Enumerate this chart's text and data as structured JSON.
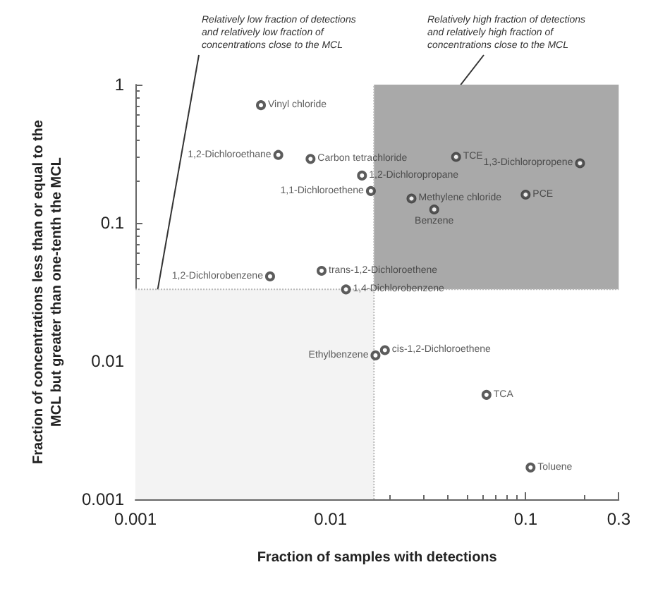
{
  "chart_data": {
    "type": "scatter",
    "xlabel": "Fraction of samples with detections",
    "ylabel": "Fraction of concentrations less than or equal to the\nMCL but greater than one-tenth the MCL",
    "log": "xy",
    "xlim": [
      0.001,
      0.3
    ],
    "xticks": [
      0.001,
      0.01,
      0.1,
      0.3
    ],
    "ylim": [
      0.001,
      1
    ],
    "yticks": [
      0.001,
      0.01,
      0.1,
      1
    ],
    "grid": false,
    "marker": "circle",
    "series": [
      {
        "color": "#333333",
        "x": [
          0.0044,
          0.0054,
          0.0079,
          0.0145,
          0.0161,
          0.044,
          0.19,
          0.026,
          0.1,
          0.034,
          0.009,
          0.0049,
          0.012,
          0.019,
          0.017,
          0.063,
          0.106
        ],
        "values": [
          0.71,
          0.31,
          0.29,
          0.22,
          0.17,
          0.3,
          0.27,
          0.15,
          0.16,
          0.125,
          0.045,
          0.041,
          0.033,
          0.012,
          0.011,
          0.0057,
          0.0017
        ]
      }
    ],
    "annotations": [
      {
        "text": "Vinyl chloride",
        "x": 0.0044,
        "y": 0.71
      },
      {
        "text": "1,2-Dichloroethane",
        "x": 0.0054,
        "y": 0.31
      },
      {
        "text": "Carbon tetrachloride",
        "x": 0.0079,
        "y": 0.29
      },
      {
        "text": "1,2-Dichloropropane",
        "x": 0.0145,
        "y": 0.22
      },
      {
        "text": "1,1-Dichloroethene",
        "x": 0.0161,
        "y": 0.17
      },
      {
        "text": "TCE",
        "x": 0.044,
        "y": 0.3
      },
      {
        "text": "1,3-Dichloropropene",
        "x": 0.19,
        "y": 0.27
      },
      {
        "text": "Methylene chloride",
        "x": 0.026,
        "y": 0.15
      },
      {
        "text": "PCE",
        "x": 0.1,
        "y": 0.16
      },
      {
        "text": "Benzene",
        "x": 0.034,
        "y": 0.125
      },
      {
        "text": "trans-1,2-Dichloroethene",
        "x": 0.009,
        "y": 0.045
      },
      {
        "text": "1,2-Dichlorobenzene",
        "x": 0.0049,
        "y": 0.041
      },
      {
        "text": "1,4-Dichlorobenzene",
        "x": 0.012,
        "y": 0.033
      },
      {
        "text": "cis-1,2-Dichloroethene",
        "x": 0.019,
        "y": 0.012
      },
      {
        "text": "Ethylbenzene",
        "x": 0.017,
        "y": 0.011
      },
      {
        "text": "TCA",
        "x": 0.063,
        "y": 0.0057
      },
      {
        "text": "Toluene",
        "x": 0.106,
        "y": 0.0017
      },
      "Relatively low fraction of detections\nand relatively low fraction of\nconcentrations close to the MCL",
      "Relatively high fraction of detections\nand relatively high fraction of\nconcentrations close to the MCL"
    ],
    "ref_lines": [
      {
        "axis": "x",
        "value": 0.0167,
        "color": "#bbbbbb",
        "line_style": "dotted"
      },
      {
        "axis": "y",
        "value": 0.033,
        "color": "#bbbbbb",
        "line_style": "dotted"
      }
    ],
    "bands": [
      {
        "axis": "x",
        "from": 0.0167,
        "to": 0.3,
        "color": "#a9a9a9"
      },
      {
        "axis": "x",
        "from": 0.001,
        "to": 0.0167,
        "color": "#f3f3f3"
      }
    ]
  }
}
